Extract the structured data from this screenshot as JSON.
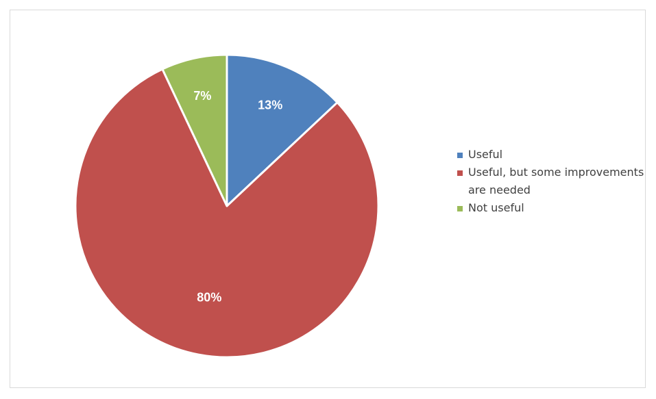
{
  "chart_data": {
    "type": "pie",
    "title": "",
    "categories": [
      "Useful",
      "Useful, but some improvements are needed",
      "Not useful"
    ],
    "values": [
      13,
      80,
      7
    ],
    "value_labels": [
      "13%",
      "80%",
      "7%"
    ],
    "colors": [
      "#4f81bd",
      "#c0504d",
      "#9bbb59"
    ],
    "start_angle_deg": 0,
    "direction": "clockwise",
    "legend_position": "right",
    "legend": [
      {
        "label": "Useful",
        "color": "#4f81bd"
      },
      {
        "label": "Useful, but some improvements are needed",
        "color": "#c0504d"
      },
      {
        "label": "Not useful",
        "color": "#9bbb59"
      }
    ]
  }
}
